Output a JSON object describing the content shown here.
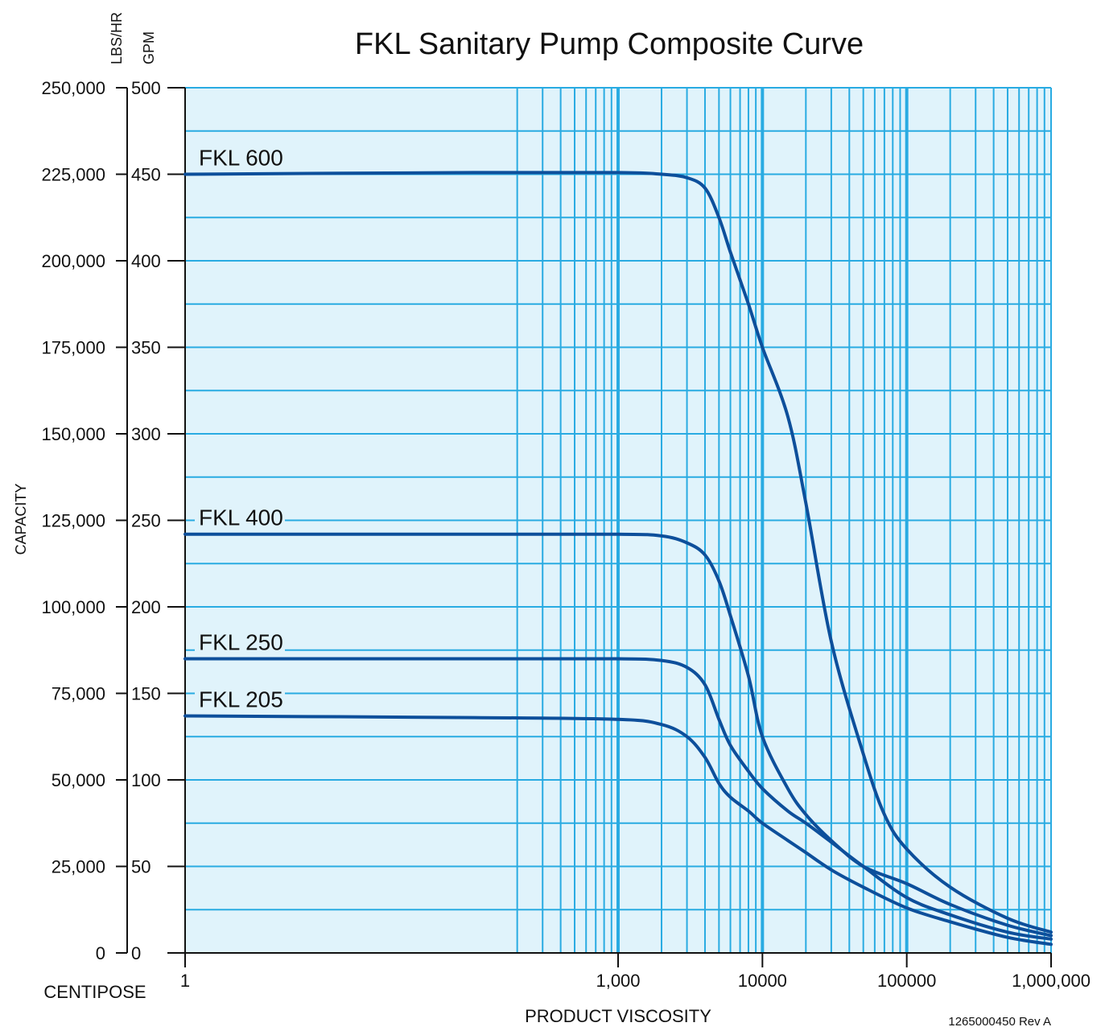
{
  "chart_data": {
    "type": "line",
    "title": "FKL Sanitary Pump Composite Curve",
    "xlabel": "PRODUCT VISCOSITY",
    "x_unit_label": "CENTIPOSE",
    "ylabel": "CAPACITY",
    "y_unit_labels": {
      "left": "LBS/HR",
      "right": "GPM"
    },
    "x_scale": "log",
    "x_tick_positions": [
      1,
      1000,
      10000,
      100000,
      1000000
    ],
    "x_tick_labels": [
      "1",
      "1,000",
      "10000",
      "100000",
      "1,000,000"
    ],
    "ylim": [
      0,
      500
    ],
    "y_ticks_gpm": [
      "0",
      "50",
      "100",
      "150",
      "200",
      "250",
      "300",
      "350",
      "400",
      "450",
      "500"
    ],
    "y_ticks_lbshr": [
      "0",
      "25,000",
      "50,000",
      "75,000",
      "100,000",
      "125,000",
      "150,000",
      "175,000",
      "200,000",
      "225,000",
      "250,000"
    ],
    "grid": true,
    "colors": {
      "plot_bg": "#e0f3fb",
      "grid": "#29abe2",
      "curve": "#0d4f9b",
      "axis": "#111111"
    },
    "footnote": "1265000450 Rev A",
    "series": [
      {
        "name": "FKL 600",
        "x": [
          1,
          100,
          1000,
          2000,
          3000,
          4000,
          5000,
          6000,
          8000,
          10000,
          15000,
          20000,
          30000,
          50000,
          70000,
          100000,
          200000,
          500000,
          1000000
        ],
        "y": [
          450,
          451,
          451,
          450,
          448,
          442,
          425,
          405,
          375,
          350,
          310,
          260,
          180,
          115,
          80,
          60,
          38,
          20,
          12
        ]
      },
      {
        "name": "FKL 400",
        "x": [
          1,
          100,
          1000,
          2000,
          3000,
          4000,
          5000,
          6000,
          8000,
          10000,
          15000,
          20000,
          30000,
          50000,
          100000,
          200000,
          500000,
          1000000
        ],
        "y": [
          242,
          242,
          242,
          241,
          237,
          230,
          215,
          195,
          160,
          125,
          95,
          80,
          65,
          50,
          40,
          28,
          16,
          10
        ]
      },
      {
        "name": "FKL 250",
        "x": [
          1,
          100,
          1000,
          2000,
          3000,
          4000,
          5000,
          6000,
          8000,
          10000,
          15000,
          20000,
          30000,
          50000,
          100000,
          200000,
          500000,
          1000000
        ],
        "y": [
          170,
          170,
          170,
          169,
          165,
          155,
          135,
          120,
          105,
          95,
          82,
          75,
          64,
          50,
          32,
          22,
          12,
          8
        ]
      },
      {
        "name": "FKL 205",
        "x": [
          1,
          100,
          1000,
          2000,
          3000,
          4000,
          5000,
          6000,
          8000,
          10000,
          15000,
          20000,
          30000,
          50000,
          100000,
          200000,
          500000,
          1000000
        ],
        "y": [
          137,
          136,
          135,
          132,
          125,
          113,
          98,
          90,
          82,
          75,
          65,
          58,
          48,
          38,
          26,
          18,
          9,
          5
        ]
      }
    ]
  }
}
